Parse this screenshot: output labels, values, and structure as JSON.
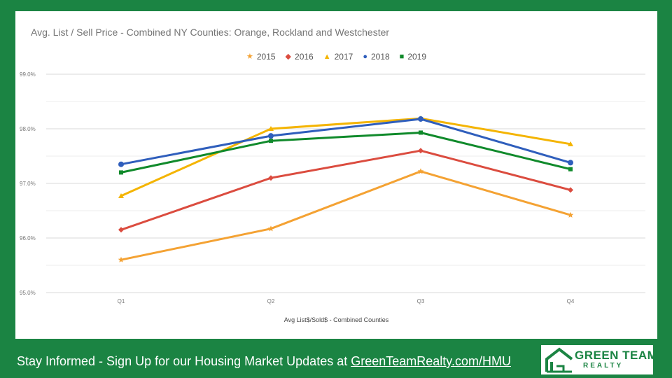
{
  "chart_data": {
    "type": "line",
    "title": "Avg. List / Sell Price - Combined NY Counties: Orange, Rockland and Westchester",
    "xlabel": "Avg List$/Sold$ - Combined Counties",
    "ylabel": "",
    "categories": [
      "Q1",
      "Q2",
      "Q3",
      "Q4"
    ],
    "ylim": [
      95.0,
      99.0
    ],
    "yticks": [
      "95.0%",
      "96.0%",
      "97.0%",
      "98.0%",
      "99.0%"
    ],
    "grid": true,
    "legend_position": "top",
    "series": [
      {
        "name": "2015",
        "color": "#f4a233",
        "marker": "star",
        "values": [
          95.6,
          96.17,
          97.22,
          96.42
        ]
      },
      {
        "name": "2016",
        "color": "#db4c3f",
        "marker": "diamond",
        "values": [
          96.15,
          97.1,
          97.6,
          96.88
        ]
      },
      {
        "name": "2017",
        "color": "#f4b400",
        "marker": "triangle",
        "values": [
          96.77,
          98.0,
          98.19,
          97.72
        ]
      },
      {
        "name": "2018",
        "color": "#2f5ebc",
        "marker": "circle",
        "values": [
          97.35,
          97.87,
          98.18,
          97.38
        ]
      },
      {
        "name": "2019",
        "color": "#108a2b",
        "marker": "square",
        "values": [
          97.2,
          97.78,
          97.93,
          97.26
        ]
      }
    ]
  },
  "footer": {
    "text": "Stay Informed - Sign Up for our Housing Market Updates at ",
    "link": "GreenTeamRealty.com/HMU"
  },
  "logo": {
    "line1": "GREEN TEAM",
    "line2": "REALTY"
  }
}
